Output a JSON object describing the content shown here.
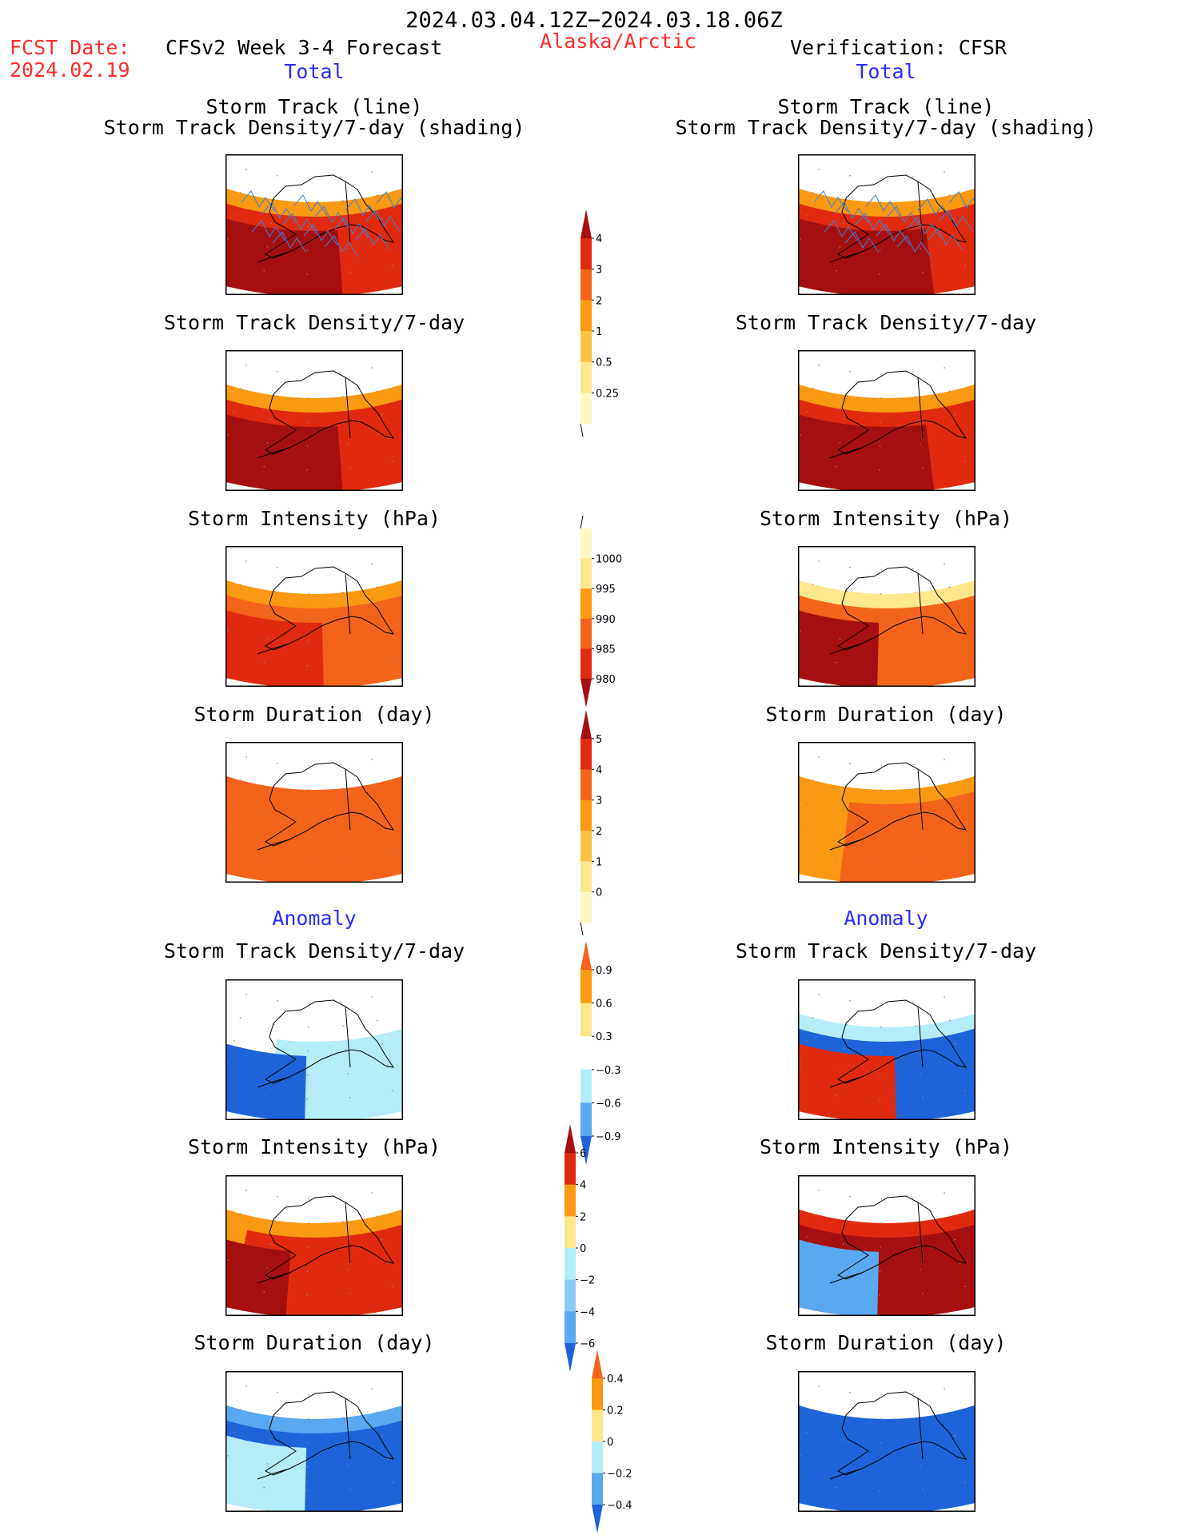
{
  "header": {
    "period": "2024.03.04.12Z−2024.03.18.06Z",
    "fcst_label": "FCST Date:",
    "fcst_date": "2024.02.19",
    "model": "CFSv2 Week 3-4 Forecast",
    "region": "Alaska/Arctic",
    "verification": "Verification: CFSR",
    "total_left": "Total",
    "total_right": "Total",
    "anomaly_left": "Anomaly",
    "anomaly_right": "Anomaly"
  },
  "panels": {
    "track_line": "Storm Track (line)",
    "track_shading": "Storm Track Density/7-day (shading)",
    "density": "Storm Track Density/7-day",
    "intensity": "Storm Intensity (hPa)",
    "duration": "Storm Duration (day)"
  },
  "colorbars": {
    "density_total": {
      "labels": [
        "4",
        "3",
        "2",
        "1",
        "0.5",
        "0.25"
      ],
      "colors": [
        "#a50f0f",
        "#e02a10",
        "#f4631a",
        "#fa9a12",
        "#fbc244",
        "#fde78c",
        "#fff8c4"
      ]
    },
    "intensity_total": {
      "labels": [
        "1000",
        "995",
        "990",
        "985",
        "980"
      ],
      "colors": [
        "#fff8c4",
        "#fde78c",
        "#fa9a12",
        "#f4631a",
        "#e02a10",
        "#a50f0f"
      ]
    },
    "duration_total": {
      "labels": [
        "5",
        "4",
        "3",
        "2",
        "1",
        "0"
      ],
      "colors": [
        "#a50f0f",
        "#e02a10",
        "#f4631a",
        "#fa9a12",
        "#fbc244",
        "#fde78c",
        "#fff8c4"
      ]
    },
    "density_anom": {
      "labels": [
        "0.9",
        "0.6",
        "0.3",
        "−0.3",
        "−0.6",
        "−0.9"
      ],
      "colors": [
        "#f4631a",
        "#fa9a12",
        "#fde78c",
        "#ffffff",
        "#b4ecf8",
        "#5aa8f0",
        "#1e64d8"
      ]
    },
    "intensity_anom": {
      "labels": [
        "6",
        "4",
        "2",
        "0",
        "−2",
        "−4",
        "−6"
      ],
      "colors": [
        "#a50f0f",
        "#e02a10",
        "#fa9a12",
        "#fde78c",
        "#b4ecf8",
        "#8cc8f4",
        "#5aa8f0",
        "#1e64d8"
      ]
    },
    "duration_anom": {
      "labels": [
        "0.4",
        "0.2",
        "0",
        "−0.2",
        "−0.4"
      ],
      "colors": [
        "#f4631a",
        "#fa9a12",
        "#fde78c",
        "#b4ecf8",
        "#5aa8f0",
        "#1e64d8"
      ]
    }
  },
  "map_fields": {
    "fc_track": [
      {
        "c": "#fa9a12",
        "w": 1
      },
      {
        "c": "#e02a10",
        "w": 0.9
      },
      {
        "c": "#a50f0f",
        "w": 0.45
      }
    ],
    "ob_track": [
      {
        "c": "#fa9a12",
        "w": 1
      },
      {
        "c": "#e02a10",
        "w": 0.95
      },
      {
        "c": "#a50f0f",
        "w": 0.5
      }
    ],
    "fc_intensity": [
      {
        "c": "#fa9a12",
        "w": 1
      },
      {
        "c": "#f4631a",
        "w": 0.9
      },
      {
        "c": "#e02a10",
        "w": 0.4
      }
    ],
    "ob_intensity": [
      {
        "c": "#fde78c",
        "w": 1
      },
      {
        "c": "#f4631a",
        "w": 0.9
      },
      {
        "c": "#a50f0f",
        "w": 0.35
      }
    ],
    "fc_duration": [
      {
        "c": "#f4631a",
        "w": 1
      },
      {
        "c": "#f4631a",
        "w": 0.8
      }
    ],
    "ob_duration": [
      {
        "c": "#fa9a12",
        "w": 1
      },
      {
        "c": "#f4631a",
        "w": 0.5
      }
    ],
    "fc_anom_density": [
      {
        "c": "#ffffff",
        "w": 1
      },
      {
        "c": "#b4ecf8",
        "w": 0.5
      },
      {
        "c": "#1e64d8",
        "w": 0.35
      }
    ],
    "ob_anom_density": [
      {
        "c": "#b4ecf8",
        "w": 1
      },
      {
        "c": "#1e64d8",
        "w": 0.75
      },
      {
        "c": "#e02a10",
        "w": 0.4
      }
    ],
    "fc_anom_intensity": [
      {
        "c": "#fa9a12",
        "w": 1
      },
      {
        "c": "#e02a10",
        "w": 0.6
      },
      {
        "c": "#a50f0f",
        "w": 0.3
      }
    ],
    "ob_anom_intensity": [
      {
        "c": "#e02a10",
        "w": 1
      },
      {
        "c": "#a50f0f",
        "w": 0.75
      },
      {
        "c": "#5aa8f0",
        "w": 0.35
      }
    ],
    "fc_anom_duration": [
      {
        "c": "#5aa8f0",
        "w": 1
      },
      {
        "c": "#1e64d8",
        "w": 0.85
      },
      {
        "c": "#b4ecf8",
        "w": 0.35
      }
    ],
    "ob_anom_duration": [
      {
        "c": "#1e64d8",
        "w": 1
      },
      {
        "c": "#1e64d8",
        "w": 0.8
      }
    ]
  }
}
